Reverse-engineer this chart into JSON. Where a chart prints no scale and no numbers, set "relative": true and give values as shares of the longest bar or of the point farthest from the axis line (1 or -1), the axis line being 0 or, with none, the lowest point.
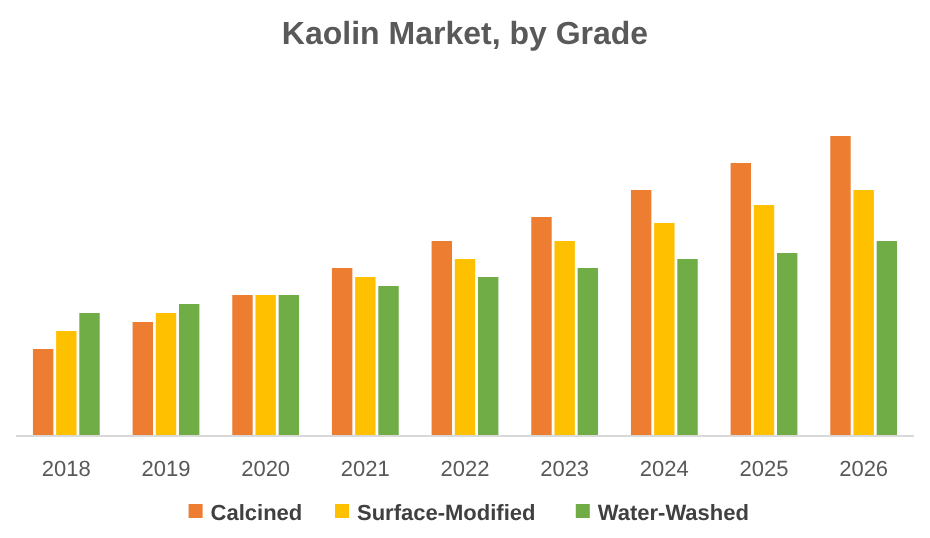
{
  "chart_data": {
    "type": "bar",
    "title": "Kaolin Market, by Grade",
    "relative": true,
    "legend": "bottom",
    "grid": false,
    "categories": [
      "2018",
      "2019",
      "2020",
      "2021",
      "2022",
      "2023",
      "2024",
      "2025",
      "2026"
    ],
    "series": [
      {
        "name": "Calcined",
        "color": "#ed7d31",
        "values": [
          0.29,
          0.38,
          0.47,
          0.56,
          0.65,
          0.73,
          0.82,
          0.91,
          1
        ]
      },
      {
        "name": "Surface-Modified",
        "color": "#ffc000",
        "values": [
          0.35,
          0.41,
          0.47,
          0.53,
          0.59,
          0.65,
          0.71,
          0.77,
          0.82
        ]
      },
      {
        "name": "Water-Washed",
        "color": "#70ad47",
        "values": [
          0.41,
          0.44,
          0.47,
          0.5,
          0.53,
          0.56,
          0.59,
          0.61,
          0.65
        ]
      }
    ]
  }
}
